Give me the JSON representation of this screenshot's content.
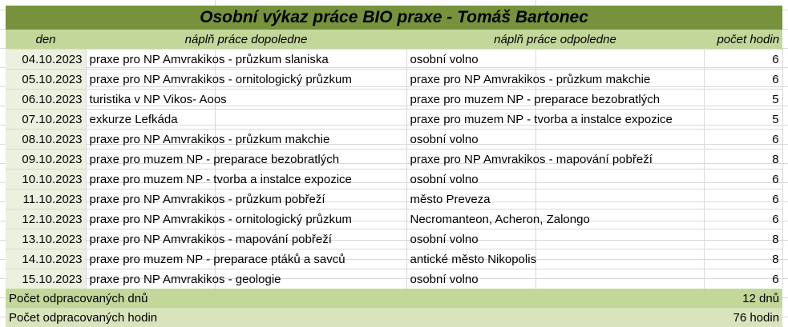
{
  "title": "Osobní výkaz práce BIO praxe - Tomáš Bartonec",
  "headers": {
    "day": "den",
    "morning": "náplň práce dopoledne",
    "afternoon": "náplň práce odpoledne",
    "hours": "počet hodin"
  },
  "rows": [
    {
      "date": "04.10.2023",
      "morning": "praxe pro NP Amvrakikos - průzkum slaniska",
      "afternoon": "osobní volno",
      "hours": "6"
    },
    {
      "date": "05.10.2023",
      "morning": "praxe pro NP Amvrakikos - ornitologický průzkum",
      "afternoon": "praxe pro NP Amvrakikos - průzkum makchie",
      "hours": "6"
    },
    {
      "date": "06.10.2023",
      "morning": "turistika v NP Vikos- Aoos",
      "afternoon": "praxe pro muzem NP - preparace bezobratlých",
      "hours": "5"
    },
    {
      "date": "07.10.2023",
      "morning": "exkurze Lefkáda",
      "afternoon": "praxe pro muzem NP - tvorba a instalce expozice",
      "hours": "5"
    },
    {
      "date": "08.10.2023",
      "morning": "praxe pro NP Amvrakikos - průzkum makchie",
      "afternoon": "osobní volno",
      "hours": "6"
    },
    {
      "date": "09.10.2023",
      "morning": "praxe pro muzem NP - preparace bezobratlých",
      "afternoon": "praxe pro NP Amvrakikos - mapování pobřeží",
      "hours": "8"
    },
    {
      "date": "10.10.2023",
      "morning": "praxe pro muzem NP - tvorba a instalce expozice",
      "afternoon": "osobní volno",
      "hours": "6"
    },
    {
      "date": "11.10.2023",
      "morning": "praxe pro NP Amvrakikos - průzkum pobřeží",
      "afternoon": "město Preveza",
      "hours": "6"
    },
    {
      "date": "12.10.2023",
      "morning": "praxe pro NP Amvrakikos - ornitologický průzkum",
      "afternoon": "Necromanteon, Acheron, Zalongo",
      "hours": "6"
    },
    {
      "date": "13.10.2023",
      "morning": "praxe pro NP Amvrakikos - mapování pobřeží",
      "afternoon": "osobní volno",
      "hours": "8"
    },
    {
      "date": "14.10.2023",
      "morning": "praxe pro muzem NP - preparace ptáků a savců",
      "afternoon": "antické město Nikopolis",
      "hours": "8"
    },
    {
      "date": "15.10.2023",
      "morning": "praxe pro NP Amvrakikos - geologie",
      "afternoon": "osobní volno",
      "hours": "6"
    }
  ],
  "summary": {
    "days_label": "Počet odpracovaných dnů",
    "days_value": "12 dnů",
    "hours_label": "Počet odpracovaných hodin",
    "hours_value": "76 hodin"
  }
}
